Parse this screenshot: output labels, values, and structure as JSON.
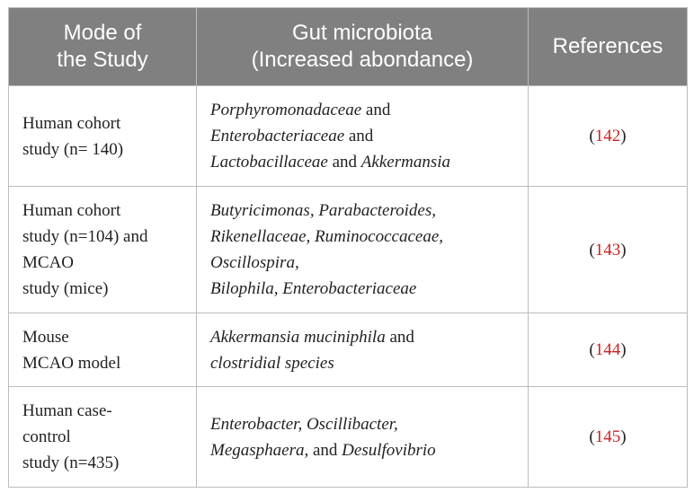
{
  "headers": {
    "mode": [
      "Mode of",
      "the Study"
    ],
    "microbiota": [
      "Gut microbiota",
      "(Increased abondance)"
    ],
    "references": "References"
  },
  "rows": [
    {
      "mode": [
        "Human cohort",
        "study (n= 140)"
      ],
      "microbiota": [
        [
          {
            "t": "Porphyromonadaceae",
            "i": true
          },
          {
            "t": " and",
            "i": false
          }
        ],
        [
          {
            "t": "Enterobacteriaceae",
            "i": true
          },
          {
            "t": " and",
            "i": false
          }
        ],
        [
          {
            "t": "Lactobacillaceae",
            "i": true
          },
          {
            "t": " and ",
            "i": false
          },
          {
            "t": "Akkermansia",
            "i": true
          }
        ]
      ],
      "ref": "142"
    },
    {
      "mode": [
        "Human cohort",
        "study (n=104) and",
        "MCAO",
        "study (mice)"
      ],
      "microbiota": [
        [
          {
            "t": "Butyricimonas, Parabacteroides,",
            "i": true
          }
        ],
        [
          {
            "t": "Rikenellaceae, Ruminococcaceae,",
            "i": true
          }
        ],
        [
          {
            "t": "Oscillospira,",
            "i": true
          }
        ],
        [
          {
            "t": "Bilophila, Enterobacteriaceae",
            "i": true
          }
        ]
      ],
      "ref": "143"
    },
    {
      "mode": [
        "Mouse",
        "MCAO model"
      ],
      "microbiota": [
        [
          {
            "t": "Akkermansia muciniphila",
            "i": true
          },
          {
            "t": " and",
            "i": false
          }
        ],
        [
          {
            "t": "clostridial species",
            "i": true
          }
        ]
      ],
      "ref": "144"
    },
    {
      "mode": [
        "Human case-",
        "control",
        "study (n=435)"
      ],
      "microbiota": [
        [
          {
            "t": "Enterobacter, Oscillibacter,",
            "i": true
          }
        ],
        [
          {
            "t": "Megasphaera",
            "i": true
          },
          {
            "t": ", and ",
            "i": false
          },
          {
            "t": "Desulfovibrio",
            "i": true
          }
        ]
      ],
      "ref": "145"
    }
  ],
  "colors": {
    "header_bg": "#808080",
    "header_text": "#ffffff",
    "border": "#bcbcbc",
    "reference_link": "#cc2222"
  }
}
